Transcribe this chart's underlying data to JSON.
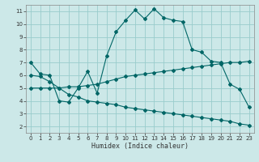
{
  "xlabel": "Humidex (Indice chaleur)",
  "ylabel": "",
  "bg_color": "#cce8e8",
  "grid_color": "#99cccc",
  "line_color": "#006666",
  "xlim": [
    -0.5,
    23.5
  ],
  "ylim": [
    1.5,
    11.5
  ],
  "xticks": [
    0,
    1,
    2,
    3,
    4,
    5,
    6,
    7,
    8,
    9,
    10,
    11,
    12,
    13,
    14,
    15,
    16,
    17,
    18,
    19,
    20,
    21,
    22,
    23
  ],
  "yticks": [
    2,
    3,
    4,
    5,
    6,
    7,
    8,
    9,
    10,
    11
  ],
  "curve1_x": [
    0,
    1,
    2,
    3,
    4,
    5,
    6,
    7,
    8,
    9,
    10,
    11,
    12,
    13,
    14,
    15,
    16,
    17,
    18,
    19,
    20,
    21,
    22,
    23
  ],
  "curve1_y": [
    7.0,
    6.1,
    6.0,
    4.0,
    3.9,
    5.0,
    6.3,
    4.6,
    7.5,
    9.4,
    10.3,
    11.1,
    10.4,
    11.2,
    10.5,
    10.3,
    10.2,
    8.0,
    7.8,
    7.1,
    7.0,
    5.3,
    4.9,
    3.5
  ],
  "curve2_x": [
    0,
    1,
    2,
    3,
    4,
    5,
    6,
    7,
    8,
    9,
    10,
    11,
    12,
    13,
    14,
    15,
    16,
    17,
    18,
    19,
    20,
    21,
    22,
    23
  ],
  "curve2_y": [
    5.0,
    5.0,
    5.0,
    5.0,
    5.1,
    5.1,
    5.2,
    5.3,
    5.5,
    5.7,
    5.9,
    6.0,
    6.1,
    6.2,
    6.3,
    6.4,
    6.5,
    6.6,
    6.7,
    6.8,
    6.9,
    7.0,
    7.0,
    7.1
  ],
  "curve3_x": [
    0,
    1,
    2,
    3,
    4,
    5,
    6,
    7,
    8,
    9,
    10,
    11,
    12,
    13,
    14,
    15,
    16,
    17,
    18,
    19,
    20,
    21,
    22,
    23
  ],
  "curve3_y": [
    6.0,
    5.9,
    5.5,
    5.0,
    4.5,
    4.3,
    4.0,
    3.9,
    3.8,
    3.7,
    3.5,
    3.4,
    3.3,
    3.2,
    3.1,
    3.0,
    2.9,
    2.8,
    2.7,
    2.6,
    2.5,
    2.4,
    2.2,
    2.1
  ],
  "tick_fontsize": 5.0,
  "xlabel_fontsize": 6.0,
  "marker_size": 2.0,
  "line_width": 0.8
}
